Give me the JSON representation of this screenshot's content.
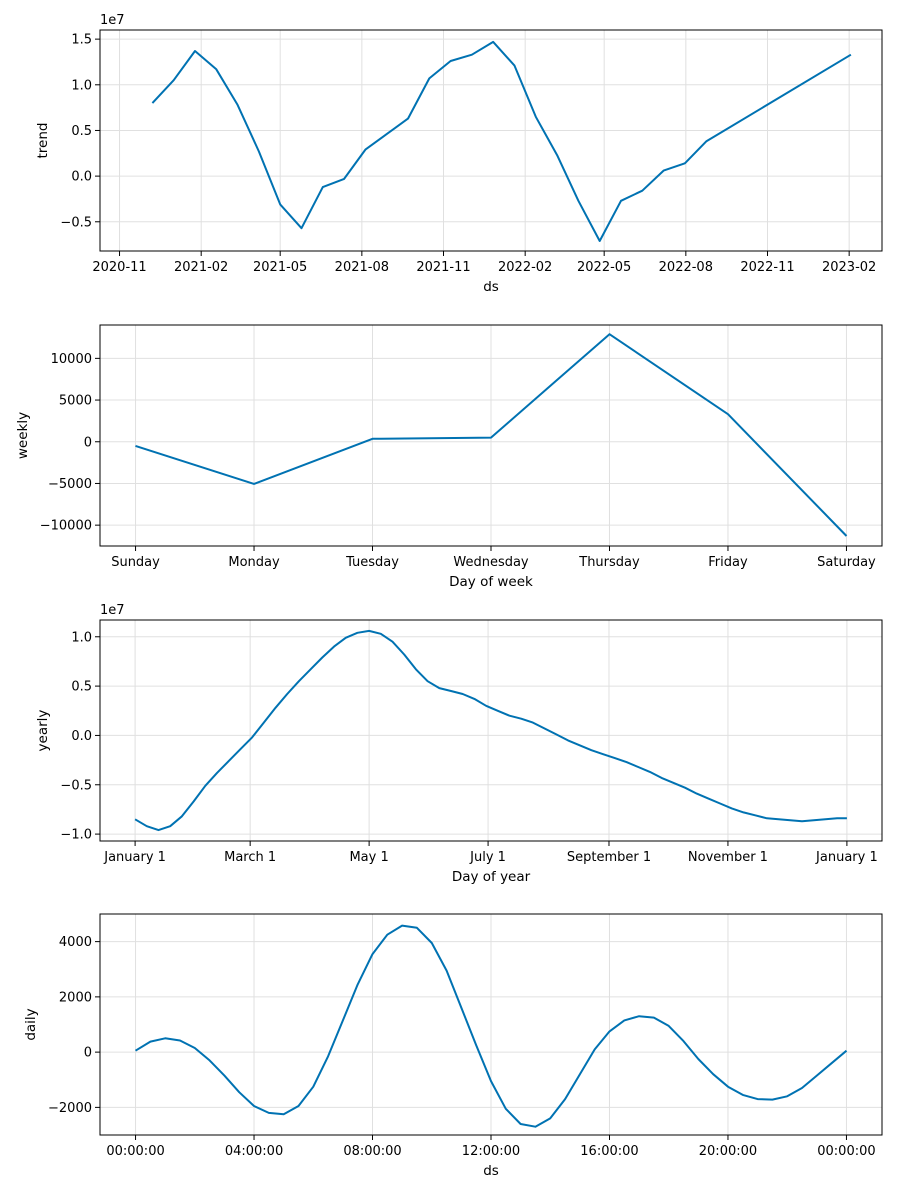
{
  "chart_data": [
    {
      "type": "line",
      "xlabel": "ds",
      "ylabel": "trend",
      "offset_text": "1e7",
      "color": "#0072b2",
      "grid": true,
      "x_type": "date",
      "xlim": [
        "2020-10-10",
        "2023-03-10"
      ],
      "ylim": [
        -0.82,
        1.6
      ],
      "x_ticks": [
        "2020-11-01",
        "2021-02-01",
        "2021-05-01",
        "2021-08-01",
        "2021-11-01",
        "2022-02-01",
        "2022-05-01",
        "2022-08-01",
        "2022-11-01",
        "2023-02-01"
      ],
      "x_tick_labels": [
        "2020-11",
        "2021-02",
        "2021-05",
        "2021-08",
        "2021-11",
        "2022-02",
        "2022-05",
        "2022-08",
        "2022-11",
        "2023-02"
      ],
      "y_ticks": [
        -0.5,
        0.0,
        0.5,
        1.0,
        1.5
      ],
      "y_tick_labels": [
        "−0.5",
        "0.0",
        "0.5",
        "1.0",
        "1.5"
      ],
      "x": [
        "2020-12-08",
        "2021-01-01",
        "2021-01-25",
        "2021-02-18",
        "2021-03-14",
        "2021-04-07",
        "2021-05-01",
        "2021-05-25",
        "2021-06-18",
        "2021-07-12",
        "2021-08-05",
        "2021-08-29",
        "2021-09-22",
        "2021-10-16",
        "2021-11-09",
        "2021-12-03",
        "2021-12-27",
        "2022-01-20",
        "2022-02-13",
        "2022-03-09",
        "2022-04-02",
        "2022-04-26",
        "2022-05-20",
        "2022-06-13",
        "2022-07-07",
        "2022-07-31",
        "2022-08-24",
        "2023-02-03"
      ],
      "y": [
        0.8,
        1.05,
        1.37,
        1.17,
        0.78,
        0.27,
        -0.31,
        -0.57,
        -0.12,
        -0.03,
        0.29,
        0.46,
        0.63,
        1.07,
        1.26,
        1.33,
        1.47,
        1.21,
        0.65,
        0.23,
        -0.27,
        -0.71,
        -0.27,
        -0.16,
        0.06,
        0.14,
        0.38,
        1.33
      ]
    },
    {
      "type": "line",
      "xlabel": "Day of week",
      "ylabel": "weekly",
      "offset_text": "",
      "color": "#0072b2",
      "grid": true,
      "x_type": "index",
      "xlim": [
        -0.3,
        6.3
      ],
      "ylim": [
        -12500,
        14000
      ],
      "x_ticks": [
        0,
        1,
        2,
        3,
        4,
        5,
        6
      ],
      "x_tick_labels": [
        "Sunday",
        "Monday",
        "Tuesday",
        "Wednesday",
        "Thursday",
        "Friday",
        "Saturday"
      ],
      "y_ticks": [
        -10000,
        -5000,
        0,
        5000,
        10000
      ],
      "y_tick_labels": [
        "−10000",
        "−5000",
        "0",
        "5000",
        "10000"
      ],
      "x": [
        0,
        1,
        2,
        3,
        4,
        5,
        6
      ],
      "y": [
        -500,
        -5050,
        350,
        500,
        12900,
        3300,
        -11300
      ]
    },
    {
      "type": "line",
      "xlabel": "Day of year",
      "ylabel": "yearly",
      "offset_text": "1e7",
      "color": "#0072b2",
      "grid": true,
      "x_type": "index",
      "xlim": [
        -18,
        383
      ],
      "ylim": [
        -1.07,
        1.17
      ],
      "x_ticks": [
        0,
        59,
        120,
        181,
        243,
        304,
        365
      ],
      "x_tick_labels": [
        "January 1",
        "March 1",
        "May 1",
        "July 1",
        "September 1",
        "November 1",
        "January 1"
      ],
      "y_ticks": [
        -1.0,
        -0.5,
        0.0,
        0.5,
        1.0
      ],
      "y_tick_labels": [
        "−1.0",
        "−0.5",
        "0.0",
        "0.5",
        "1.0"
      ],
      "x": [
        0,
        6,
        12,
        18,
        24,
        30,
        36,
        42,
        48,
        54,
        60,
        66,
        72,
        78,
        84,
        90,
        96,
        102,
        108,
        114,
        120,
        126,
        132,
        138,
        144,
        150,
        156,
        162,
        168,
        174,
        180,
        186,
        192,
        198,
        204,
        210,
        216,
        222,
        228,
        234,
        240,
        246,
        252,
        258,
        264,
        270,
        276,
        282,
        288,
        294,
        300,
        306,
        312,
        318,
        324,
        330,
        336,
        342,
        348,
        354,
        360,
        365
      ],
      "y": [
        -0.85,
        -0.92,
        -0.96,
        -0.92,
        -0.82,
        -0.67,
        -0.51,
        -0.38,
        -0.26,
        -0.14,
        -0.02,
        0.13,
        0.28,
        0.42,
        0.55,
        0.67,
        0.79,
        0.9,
        0.99,
        1.04,
        1.06,
        1.03,
        0.95,
        0.82,
        0.67,
        0.55,
        0.48,
        0.45,
        0.42,
        0.37,
        0.3,
        0.25,
        0.2,
        0.17,
        0.13,
        0.07,
        0.01,
        -0.05,
        -0.1,
        -0.15,
        -0.19,
        -0.23,
        -0.27,
        -0.32,
        -0.37,
        -0.43,
        -0.48,
        -0.53,
        -0.59,
        -0.64,
        -0.69,
        -0.74,
        -0.78,
        -0.81,
        -0.84,
        -0.85,
        -0.86,
        -0.87,
        -0.86,
        -0.85,
        -0.84,
        -0.84
      ]
    },
    {
      "type": "line",
      "xlabel": "ds",
      "ylabel": "daily",
      "offset_text": "",
      "color": "#0072b2",
      "grid": true,
      "x_type": "hours",
      "xlim": [
        -1.2,
        25.2
      ],
      "ylim": [
        -3000,
        5000
      ],
      "x_ticks": [
        0,
        4,
        8,
        12,
        16,
        20,
        24
      ],
      "x_tick_labels": [
        "00:00:00",
        "04:00:00",
        "08:00:00",
        "12:00:00",
        "16:00:00",
        "20:00:00",
        "00:00:00"
      ],
      "y_ticks": [
        -2000,
        0,
        2000,
        4000
      ],
      "y_tick_labels": [
        "−2000",
        "0",
        "2000",
        "4000"
      ],
      "x": [
        0,
        0.5,
        1,
        1.5,
        2,
        2.5,
        3,
        3.5,
        4,
        4.5,
        5,
        5.5,
        6,
        6.5,
        7,
        7.5,
        8,
        8.5,
        9,
        9.5,
        10,
        10.5,
        11,
        11.5,
        12,
        12.5,
        13,
        13.5,
        14,
        14.5,
        15,
        15.5,
        16,
        16.5,
        17,
        17.5,
        18,
        18.5,
        19,
        19.5,
        20,
        20.5,
        21,
        21.5,
        22,
        22.5,
        23,
        23.5,
        24
      ],
      "y": [
        50,
        380,
        500,
        420,
        150,
        -300,
        -850,
        -1450,
        -1950,
        -2200,
        -2250,
        -1950,
        -1250,
        -150,
        1150,
        2450,
        3550,
        4250,
        4580,
        4500,
        3950,
        2950,
        1600,
        250,
        -1050,
        -2050,
        -2600,
        -2700,
        -2400,
        -1700,
        -800,
        100,
        750,
        1150,
        1300,
        1250,
        950,
        400,
        -250,
        -800,
        -1250,
        -1550,
        -1700,
        -1720,
        -1600,
        -1300,
        -850,
        -400,
        50
      ]
    }
  ]
}
